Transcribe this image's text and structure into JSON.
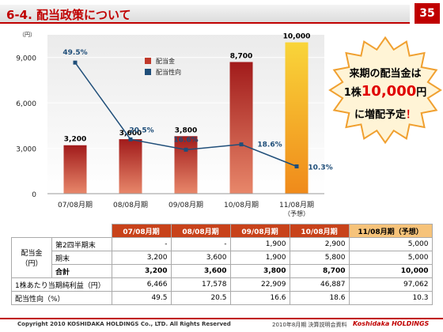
{
  "header": {
    "title": "6-4. 配当政策について",
    "page_number": "35"
  },
  "chart_data": {
    "type": "bar",
    "y_unit": "（円）",
    "categories": [
      "07/08月期",
      "08/08月期",
      "09/08月期",
      "10/08月期",
      "11/08月期"
    ],
    "category_notes": [
      "",
      "",
      "",
      "",
      "（予想）"
    ],
    "ylim": [
      0,
      10500
    ],
    "yticks": [
      0,
      3000,
      6000,
      9000
    ],
    "ytick_labels": [
      "0",
      "3,000",
      "6,000",
      "9,000"
    ],
    "series": [
      {
        "name": "配当金",
        "type": "bar",
        "values": [
          3200,
          3600,
          3800,
          8700,
          10000
        ],
        "labels": [
          "3,200",
          "3,600",
          "3,800",
          "8,700",
          "10,000"
        ],
        "color": "#c0392b"
      },
      {
        "name": "配当性向",
        "type": "line",
        "values": [
          49.5,
          20.5,
          16.6,
          18.6,
          10.3
        ],
        "labels": [
          "49.5%",
          "20.5%",
          "16.6%",
          "18.6%",
          "10.3%"
        ],
        "color": "#1f4e79"
      }
    ],
    "legend": [
      "配当金",
      "配当性向"
    ],
    "legend_position": "top-left"
  },
  "callout": {
    "line1": "来期の配当金は",
    "line2_prefix": "1株",
    "line2_value": "10,000",
    "line2_suffix": "円",
    "line3_prefix": "に増配予定",
    "line3_mark": "！"
  },
  "table": {
    "headers": [
      "07/08月期",
      "08/08月期",
      "09/08月期",
      "10/08月期",
      "11/08月期（予想）"
    ],
    "group_label": "配当金\n（円）",
    "rows": [
      {
        "label": "第2四半期末",
        "values": [
          "-",
          "-",
          "1,900",
          "2,900",
          "5,000"
        ]
      },
      {
        "label": "期末",
        "values": [
          "3,200",
          "3,600",
          "1,900",
          "5,800",
          "5,000"
        ]
      },
      {
        "label": "合計",
        "values": [
          "3,200",
          "3,600",
          "3,800",
          "8,700",
          "10,000"
        ]
      },
      {
        "label": "1株あたり当期純利益（円）",
        "values": [
          "6,466",
          "17,578",
          "22,909",
          "46,887",
          "97,062"
        ]
      },
      {
        "label": "配当性向（%）",
        "values": [
          "49.5",
          "20.5",
          "16.6",
          "18.6",
          "10.3"
        ]
      }
    ]
  },
  "footer": {
    "copyright": "Copyright 2010 KOSHIDAKA HOLDINGS Co., LTD. All Rights Reserved",
    "doc": "2010年8月期 決算説明会資料",
    "logo": "Koshidaka HOLDINGS"
  }
}
